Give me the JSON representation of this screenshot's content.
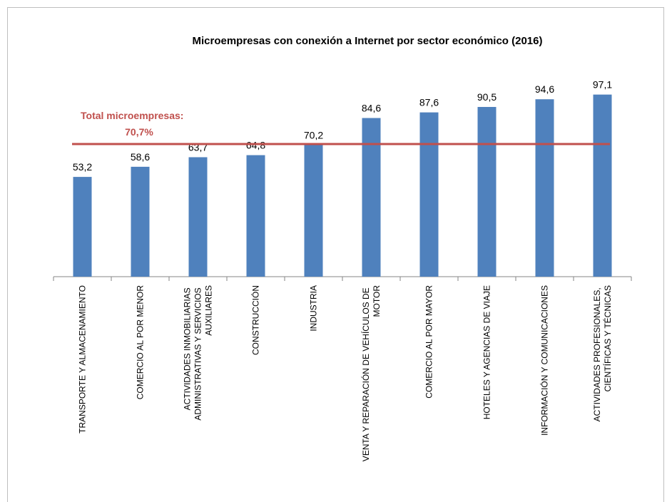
{
  "chart_data": {
    "type": "bar",
    "title": "Microempresas con conexión a Internet por sector económico (2016)",
    "categories": [
      "TRANSPORTE Y ALMACENAMIENTO",
      "COMERCIO AL POR MENOR",
      "ACTIVIDADES INMOBILIARIAS ADMINISTRATIVAS Y SERVICIOS AUXILIARES",
      "CONSTRUCCIÓN",
      "INDUSTRIA",
      "VENTA Y REPARACIÓN DE VEHÍCULOS DE MOTOR",
      "COMERCIO AL POR MAYOR",
      "HOTELES Y AGENCIAS DE VIAJE",
      "INFORMACIÓN Y COMUNICACIONES",
      "ACTIVIDADES PROFESIONALES, CIENTÍFICAS Y TÉCNICAS"
    ],
    "values": [
      53.2,
      58.6,
      63.7,
      64.8,
      70.2,
      84.6,
      87.6,
      90.5,
      94.6,
      97.1
    ],
    "value_labels": [
      "53,2",
      "58,6",
      "63,7",
      "64,8",
      "70,2",
      "84,6",
      "87,6",
      "90,5",
      "94,6",
      "97,1"
    ],
    "color": "#4f81bd",
    "ylim": [
      0,
      100
    ],
    "reference_line": {
      "value": 70.7,
      "text": "Total microempresas:",
      "value_label": "70,7%",
      "color": "#c0504d"
    }
  }
}
